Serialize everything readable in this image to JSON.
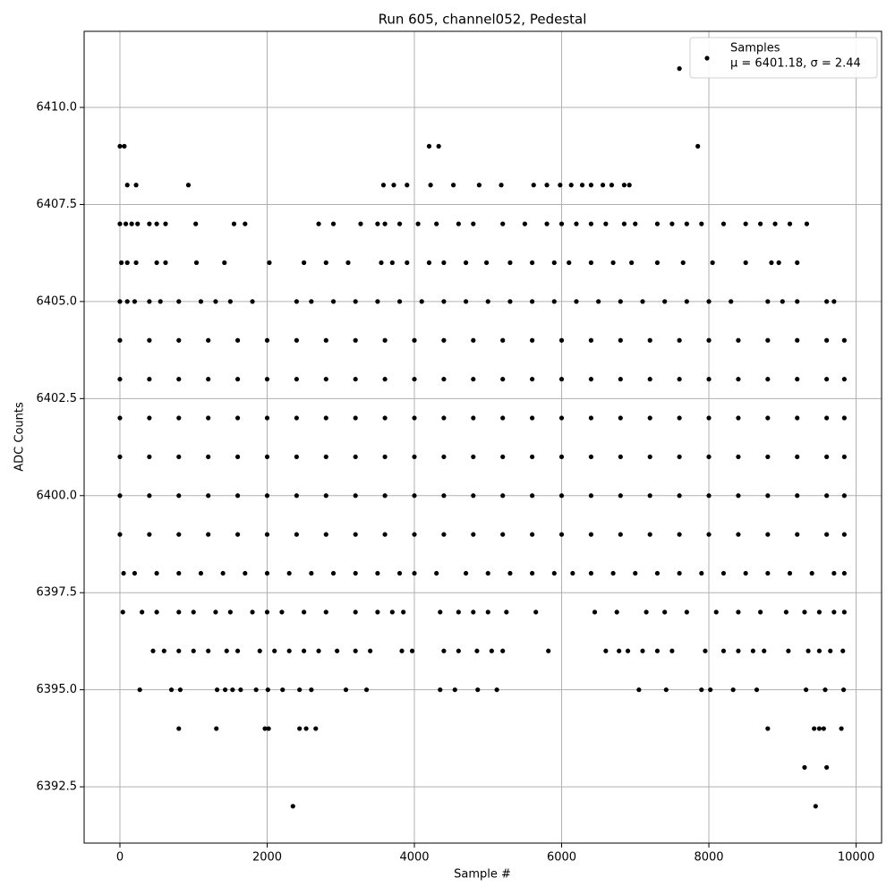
{
  "chart_data": {
    "type": "scatter",
    "title": "Run 605, channel052, Pedestal",
    "xlabel": "Sample #",
    "ylabel": "ADC Counts",
    "xlim": [
      -486,
      10346
    ],
    "ylim": [
      6391.05,
      6411.96
    ],
    "xticks": [
      0,
      2000,
      4000,
      6000,
      8000,
      10000
    ],
    "yticks": [
      6392.5,
      {
        "value": 6395,
        "label": "6395.0"
      },
      6397.5,
      {
        "value": 6400,
        "label": "6400.0"
      },
      6402.5,
      {
        "value": 6405,
        "label": "6405.0"
      },
      6407.5,
      {
        "value": 6410,
        "label": "6410.0"
      }
    ],
    "grid": true,
    "legend": "upper right",
    "annotation": "μ = 6401.18, σ = 2.44",
    "series": [
      {
        "name": "Samples",
        "color": "#000000",
        "x": [
          7600,
          0,
          60,
          4200,
          4330,
          7850,
          100,
          220,
          930,
          3580,
          3720,
          3900,
          4220,
          4530,
          4880,
          5180,
          5620,
          5800,
          5980,
          6130,
          6280,
          6400,
          6560,
          6680,
          6850,
          6920,
          0,
          80,
          160,
          240,
          400,
          500,
          620,
          1030,
          1550,
          1700,
          2700,
          2900,
          3270,
          3500,
          3600,
          3800,
          4050,
          4300,
          4600,
          4800,
          5200,
          5500,
          5800,
          6000,
          6200,
          6400,
          6600,
          6850,
          7000,
          7300,
          7500,
          7700,
          7900,
          8200,
          8500,
          8700,
          8900,
          9100,
          9330,
          20,
          100,
          220,
          500,
          620,
          1040,
          1420,
          2030,
          2500,
          2800,
          3100,
          3550,
          3700,
          3900,
          4200,
          4400,
          4700,
          4980,
          5300,
          5600,
          5900,
          6100,
          6400,
          6700,
          6950,
          7300,
          7650,
          8050,
          8500,
          8850,
          8950,
          9200,
          0,
          100,
          200,
          400,
          550,
          800,
          1100,
          1300,
          1500,
          1800,
          2400,
          2600,
          2900,
          3200,
          3500,
          3800,
          4100,
          4400,
          4700,
          5000,
          5300,
          5600,
          5900,
          6200,
          6500,
          6800,
          7100,
          7400,
          7700,
          8000,
          8300,
          8800,
          9000,
          9200,
          9600,
          9700,
          0,
          400,
          800,
          1200,
          1600,
          2000,
          2400,
          2800,
          3200,
          3600,
          4000,
          4400,
          4800,
          5200,
          5600,
          6000,
          6400,
          6800,
          7200,
          7600,
          8000,
          8400,
          8800,
          9200,
          9600,
          9840,
          0,
          400,
          800,
          1200,
          1600,
          2000,
          2400,
          2800,
          3200,
          3600,
          4000,
          4400,
          4800,
          5200,
          5600,
          6000,
          6400,
          6800,
          7200,
          7600,
          8000,
          8400,
          8800,
          9200,
          9600,
          9840,
          0,
          400,
          800,
          1200,
          1600,
          2000,
          2400,
          2800,
          3200,
          3600,
          4000,
          4400,
          4800,
          5200,
          5600,
          6000,
          6400,
          6800,
          7200,
          7600,
          8000,
          8400,
          8800,
          9200,
          9600,
          9840,
          0,
          400,
          800,
          1200,
          1600,
          2000,
          2400,
          2800,
          3200,
          3600,
          4000,
          4400,
          4800,
          5200,
          5600,
          6000,
          6400,
          6800,
          7200,
          7600,
          8000,
          8400,
          8800,
          9200,
          9600,
          9840,
          0,
          400,
          800,
          1200,
          1600,
          2000,
          2400,
          2800,
          3200,
          3600,
          4000,
          4400,
          4800,
          5200,
          5600,
          6000,
          6400,
          6800,
          7200,
          7600,
          8000,
          8400,
          8800,
          9200,
          9600,
          9840,
          0,
          400,
          800,
          1200,
          1600,
          2000,
          2400,
          2800,
          3200,
          3600,
          4000,
          4400,
          4800,
          5200,
          5600,
          6000,
          6400,
          6800,
          7200,
          7600,
          8000,
          8400,
          8800,
          9200,
          9600,
          9840,
          50,
          200,
          500,
          800,
          1100,
          1400,
          1700,
          2000,
          2300,
          2600,
          2900,
          3200,
          3500,
          3800,
          4000,
          4300,
          4700,
          5000,
          5300,
          5600,
          5900,
          6150,
          6400,
          6700,
          7000,
          7300,
          7600,
          7900,
          8200,
          8500,
          8800,
          9100,
          9400,
          9700,
          9840,
          40,
          300,
          500,
          800,
          1000,
          1300,
          1500,
          1800,
          2000,
          2200,
          2500,
          2800,
          3200,
          3500,
          3700,
          3850,
          4350,
          4600,
          4800,
          5000,
          5250,
          5650,
          6450,
          6750,
          7150,
          7400,
          7700,
          8100,
          8400,
          8700,
          9050,
          9300,
          9500,
          9700,
          9840,
          450,
          600,
          800,
          1000,
          1200,
          1450,
          1600,
          1900,
          2100,
          2300,
          2500,
          2700,
          2950,
          3200,
          3400,
          3830,
          3970,
          4400,
          4600,
          4850,
          5050,
          5200,
          5820,
          6600,
          6780,
          6900,
          7100,
          7300,
          7500,
          7950,
          8200,
          8400,
          8600,
          8750,
          9080,
          9350,
          9500,
          9650,
          9820,
          270,
          700,
          820,
          1320,
          1430,
          1530,
          1640,
          1850,
          2010,
          2210,
          2440,
          2600,
          3070,
          3350,
          4350,
          4550,
          4860,
          5120,
          7050,
          7420,
          7900,
          8020,
          8330,
          8650,
          9320,
          9580,
          9830,
          800,
          1310,
          1970,
          2020,
          2440,
          2530,
          2660,
          8800,
          9430,
          9500,
          9560,
          9800,
          9300,
          9600,
          2350,
          9450
        ],
        "values": [
          6411,
          6409,
          6409,
          6409,
          6409,
          6409,
          6408,
          6408,
          6408,
          6408,
          6408,
          6408,
          6408,
          6408,
          6408,
          6408,
          6408,
          6408,
          6408,
          6408,
          6408,
          6408,
          6408,
          6408,
          6408,
          6408,
          6407,
          6407,
          6407,
          6407,
          6407,
          6407,
          6407,
          6407,
          6407,
          6407,
          6407,
          6407,
          6407,
          6407,
          6407,
          6407,
          6407,
          6407,
          6407,
          6407,
          6407,
          6407,
          6407,
          6407,
          6407,
          6407,
          6407,
          6407,
          6407,
          6407,
          6407,
          6407,
          6407,
          6407,
          6407,
          6407,
          6407,
          6407,
          6407,
          6406,
          6406,
          6406,
          6406,
          6406,
          6406,
          6406,
          6406,
          6406,
          6406,
          6406,
          6406,
          6406,
          6406,
          6406,
          6406,
          6406,
          6406,
          6406,
          6406,
          6406,
          6406,
          6406,
          6406,
          6406,
          6406,
          6406,
          6406,
          6406,
          6406,
          6406,
          6406,
          6405,
          6405,
          6405,
          6405,
          6405,
          6405,
          6405,
          6405,
          6405,
          6405,
          6405,
          6405,
          6405,
          6405,
          6405,
          6405,
          6405,
          6405,
          6405,
          6405,
          6405,
          6405,
          6405,
          6405,
          6405,
          6405,
          6405,
          6405,
          6405,
          6405,
          6405,
          6405,
          6405,
          6405,
          6405,
          6405,
          6404,
          6404,
          6404,
          6404,
          6404,
          6404,
          6404,
          6404,
          6404,
          6404,
          6404,
          6404,
          6404,
          6404,
          6404,
          6404,
          6404,
          6404,
          6404,
          6404,
          6404,
          6404,
          6404,
          6404,
          6404,
          6404,
          6403,
          6403,
          6403,
          6403,
          6403,
          6403,
          6403,
          6403,
          6403,
          6403,
          6403,
          6403,
          6403,
          6403,
          6403,
          6403,
          6403,
          6403,
          6403,
          6403,
          6403,
          6403,
          6403,
          6403,
          6403,
          6403,
          6402,
          6402,
          6402,
          6402,
          6402,
          6402,
          6402,
          6402,
          6402,
          6402,
          6402,
          6402,
          6402,
          6402,
          6402,
          6402,
          6402,
          6402,
          6402,
          6402,
          6402,
          6402,
          6402,
          6402,
          6402,
          6402,
          6401,
          6401,
          6401,
          6401,
          6401,
          6401,
          6401,
          6401,
          6401,
          6401,
          6401,
          6401,
          6401,
          6401,
          6401,
          6401,
          6401,
          6401,
          6401,
          6401,
          6401,
          6401,
          6401,
          6401,
          6401,
          6401,
          6400,
          6400,
          6400,
          6400,
          6400,
          6400,
          6400,
          6400,
          6400,
          6400,
          6400,
          6400,
          6400,
          6400,
          6400,
          6400,
          6400,
          6400,
          6400,
          6400,
          6400,
          6400,
          6400,
          6400,
          6400,
          6400,
          6399,
          6399,
          6399,
          6399,
          6399,
          6399,
          6399,
          6399,
          6399,
          6399,
          6399,
          6399,
          6399,
          6399,
          6399,
          6399,
          6399,
          6399,
          6399,
          6399,
          6399,
          6399,
          6399,
          6399,
          6399,
          6399,
          6398,
          6398,
          6398,
          6398,
          6398,
          6398,
          6398,
          6398,
          6398,
          6398,
          6398,
          6398,
          6398,
          6398,
          6398,
          6398,
          6398,
          6398,
          6398,
          6398,
          6398,
          6398,
          6398,
          6398,
          6398,
          6398,
          6398,
          6398,
          6398,
          6398,
          6398,
          6398,
          6398,
          6398,
          6398,
          6397,
          6397,
          6397,
          6397,
          6397,
          6397,
          6397,
          6397,
          6397,
          6397,
          6397,
          6397,
          6397,
          6397,
          6397,
          6397,
          6397,
          6397,
          6397,
          6397,
          6397,
          6397,
          6397,
          6397,
          6397,
          6397,
          6397,
          6397,
          6397,
          6397,
          6397,
          6397,
          6397,
          6397,
          6397,
          6396,
          6396,
          6396,
          6396,
          6396,
          6396,
          6396,
          6396,
          6396,
          6396,
          6396,
          6396,
          6396,
          6396,
          6396,
          6396,
          6396,
          6396,
          6396,
          6396,
          6396,
          6396,
          6396,
          6396,
          6396,
          6396,
          6396,
          6396,
          6396,
          6396,
          6396,
          6396,
          6396,
          6396,
          6396,
          6396,
          6396,
          6396,
          6396,
          6395,
          6395,
          6395,
          6395,
          6395,
          6395,
          6395,
          6395,
          6395,
          6395,
          6395,
          6395,
          6395,
          6395,
          6395,
          6395,
          6395,
          6395,
          6395,
          6395,
          6395,
          6395,
          6395,
          6395,
          6395,
          6395,
          6395,
          6394,
          6394,
          6394,
          6394,
          6394,
          6394,
          6394,
          6394,
          6394,
          6394,
          6394,
          6394,
          6393,
          6393,
          6392,
          6392
        ]
      }
    ]
  }
}
